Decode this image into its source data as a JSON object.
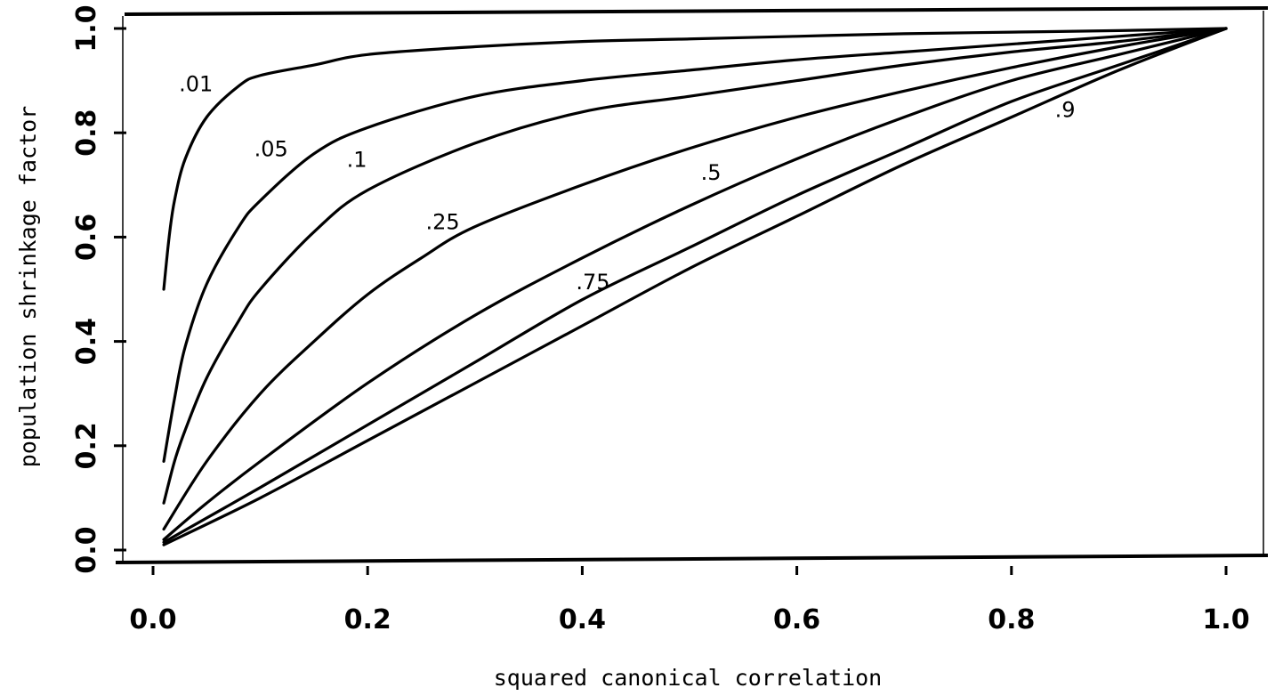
{
  "chart_data": {
    "type": "line",
    "xlabel": "squared canonical correlation",
    "ylabel": "population shrinkage factor",
    "xlim": [
      0.0,
      1.0
    ],
    "ylim": [
      0.0,
      1.0
    ],
    "x_ticks": [
      "0.0",
      "0.2",
      "0.4",
      "0.6",
      "0.8",
      "1.0"
    ],
    "y_ticks": [
      "0.0",
      "0.2",
      "0.4",
      "0.6",
      "0.8",
      "1.0"
    ],
    "grid": false,
    "legend": "none",
    "series": [
      {
        "name": ".01",
        "x": [
          0.01,
          0.015,
          0.02,
          0.03,
          0.05,
          0.08,
          0.1,
          0.15,
          0.2,
          0.3,
          0.4,
          0.5,
          0.6,
          0.7,
          0.8,
          0.9,
          1.0
        ],
        "y": [
          0.5,
          0.6,
          0.67,
          0.75,
          0.83,
          0.89,
          0.91,
          0.93,
          0.95,
          0.965,
          0.975,
          0.98,
          0.985,
          0.99,
          0.993,
          0.996,
          1.0
        ]
      },
      {
        "name": ".05",
        "x": [
          0.01,
          0.02,
          0.03,
          0.05,
          0.08,
          0.1,
          0.15,
          0.2,
          0.3,
          0.4,
          0.5,
          0.6,
          0.7,
          0.8,
          0.9,
          1.0
        ],
        "y": [
          0.17,
          0.29,
          0.39,
          0.51,
          0.62,
          0.67,
          0.76,
          0.81,
          0.87,
          0.9,
          0.92,
          0.94,
          0.955,
          0.97,
          0.985,
          1.0
        ]
      },
      {
        "name": ".1",
        "x": [
          0.01,
          0.02,
          0.03,
          0.05,
          0.08,
          0.1,
          0.15,
          0.2,
          0.3,
          0.4,
          0.5,
          0.6,
          0.7,
          0.8,
          0.9,
          1.0
        ],
        "y": [
          0.09,
          0.17,
          0.23,
          0.33,
          0.44,
          0.5,
          0.61,
          0.69,
          0.78,
          0.84,
          0.87,
          0.9,
          0.93,
          0.955,
          0.975,
          1.0
        ]
      },
      {
        "name": ".25",
        "x": [
          0.01,
          0.05,
          0.1,
          0.15,
          0.2,
          0.25,
          0.3,
          0.4,
          0.5,
          0.6,
          0.7,
          0.8,
          0.9,
          1.0
        ],
        "y": [
          0.04,
          0.17,
          0.3,
          0.4,
          0.49,
          0.56,
          0.62,
          0.7,
          0.77,
          0.83,
          0.88,
          0.925,
          0.965,
          1.0
        ]
      },
      {
        "name": ".5",
        "x": [
          0.01,
          0.05,
          0.1,
          0.2,
          0.3,
          0.4,
          0.5,
          0.6,
          0.7,
          0.8,
          0.9,
          1.0
        ],
        "y": [
          0.02,
          0.09,
          0.17,
          0.32,
          0.45,
          0.56,
          0.66,
          0.75,
          0.83,
          0.9,
          0.95,
          1.0
        ]
      },
      {
        "name": ".75",
        "x": [
          0.01,
          0.1,
          0.2,
          0.3,
          0.4,
          0.5,
          0.6,
          0.7,
          0.8,
          0.9,
          1.0
        ],
        "y": [
          0.015,
          0.12,
          0.24,
          0.36,
          0.48,
          0.58,
          0.68,
          0.77,
          0.86,
          0.93,
          1.0
        ]
      },
      {
        "name": ".9",
        "x": [
          0.01,
          0.1,
          0.2,
          0.3,
          0.4,
          0.5,
          0.6,
          0.7,
          0.8,
          0.9,
          1.0
        ],
        "y": [
          0.01,
          0.1,
          0.21,
          0.32,
          0.43,
          0.54,
          0.64,
          0.74,
          0.83,
          0.92,
          1.0
        ]
      }
    ],
    "curve_labels": [
      {
        "text": ".01",
        "at_x": 0.04,
        "at_y": 0.88
      },
      {
        "text": ".05",
        "at_x": 0.11,
        "at_y": 0.755
      },
      {
        "text": ".1",
        "at_x": 0.19,
        "at_y": 0.735
      },
      {
        "text": ".25",
        "at_x": 0.27,
        "at_y": 0.615
      },
      {
        "text": ".5",
        "at_x": 0.52,
        "at_y": 0.71
      },
      {
        "text": ".75",
        "at_x": 0.41,
        "at_y": 0.5
      },
      {
        "text": ".9",
        "at_x": 0.85,
        "at_y": 0.83
      }
    ]
  }
}
